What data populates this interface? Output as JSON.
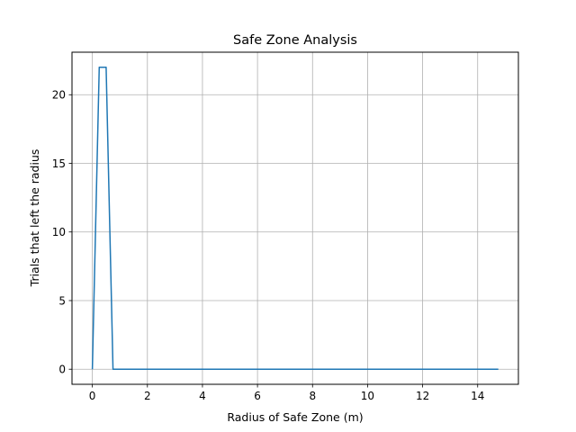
{
  "chart_data": {
    "type": "line",
    "title": "Safe Zone Analysis",
    "xlabel": "Radius of Safe Zone (m)",
    "ylabel": "Trials that left the radius",
    "xlim": [
      -0.74,
      15.48
    ],
    "ylim": [
      -1.1,
      23.1
    ],
    "xticks": [
      0,
      2,
      4,
      6,
      8,
      10,
      12,
      14
    ],
    "yticks": [
      0,
      5,
      10,
      15,
      20
    ],
    "grid": true,
    "legend": "none",
    "series": [
      {
        "color": "#1f77b4",
        "x": [
          0.0,
          0.25,
          0.5,
          0.75,
          1.0,
          2.0,
          4.0,
          6.0,
          8.0,
          10.0,
          12.0,
          14.0,
          14.75
        ],
        "y": [
          0,
          22,
          22,
          0,
          0,
          0,
          0,
          0,
          0,
          0,
          0,
          0,
          0
        ]
      }
    ]
  }
}
